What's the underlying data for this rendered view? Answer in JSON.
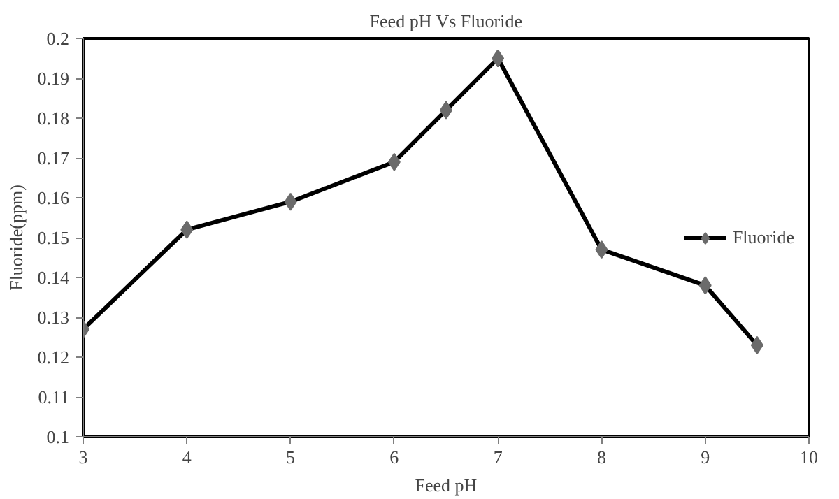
{
  "chart_data": {
    "type": "line",
    "title": "Feed pH Vs Fluoride",
    "xlabel": "Feed pH",
    "ylabel": "Fluoride(ppm)",
    "x": [
      3,
      4,
      5,
      6,
      6.5,
      7,
      8,
      9,
      9.5
    ],
    "series": [
      {
        "name": "Fluoride",
        "color": "#000000",
        "values": [
          0.127,
          0.152,
          0.159,
          0.169,
          0.182,
          0.195,
          0.147,
          0.138,
          0.123
        ]
      }
    ],
    "xlim": [
      3,
      10
    ],
    "xticks": [
      3,
      4,
      5,
      6,
      7,
      8,
      9,
      10
    ],
    "ylim": [
      0.1,
      0.2
    ],
    "yticks": [
      0.1,
      0.11,
      0.12,
      0.13,
      0.14,
      0.15,
      0.16,
      0.17,
      0.18,
      0.19,
      0.2
    ],
    "grid": false,
    "legend": "right",
    "marker": "diamond",
    "line_style": "solid"
  }
}
